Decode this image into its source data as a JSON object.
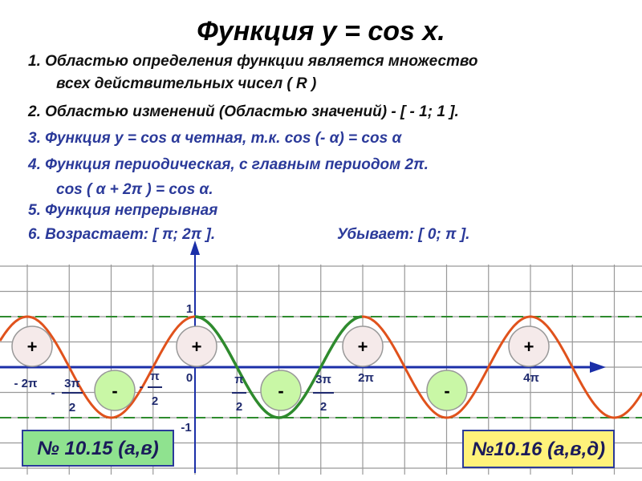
{
  "title": "Функция  y = cos x.",
  "items": [
    [
      "1. Областью определения функции является множество",
      "всех действительных чисел  ( R )"
    ],
    [
      "2.  Областью  изменений  (Областью  значений) - [ - 1;  1 ]."
    ],
    [
      "3.  Функция  y = cos α  четная, т.к.  cos (- α) = cos α"
    ],
    [
      "4.  Функция  периодическая,  с  главным  периодом  2π.",
      "cos ( α + 2π ) = cos α."
    ],
    [
      "5.  Функция  непрерывная"
    ],
    [
      "6.  Возрастает:  [  π; 2π ].",
      "Убывает:  [ 0; π ]."
    ]
  ],
  "graph": {
    "y_labels": [
      "1",
      "-1"
    ],
    "x_labels": [
      [
        "- 2π"
      ],
      [
        "-",
        "3π",
        "2"
      ],
      [
        "-",
        "π",
        "2"
      ],
      [
        "0"
      ],
      [
        "π",
        "2"
      ],
      [
        "3π",
        "2"
      ],
      [
        "2π"
      ],
      [
        "4π"
      ]
    ],
    "plus": [
      "+",
      "+",
      "+",
      "+"
    ],
    "minus": [
      "-",
      "-",
      "-"
    ]
  },
  "tasks": [
    "№ 10.15 (а,в)",
    "№10.16 (а,в,д)"
  ]
}
